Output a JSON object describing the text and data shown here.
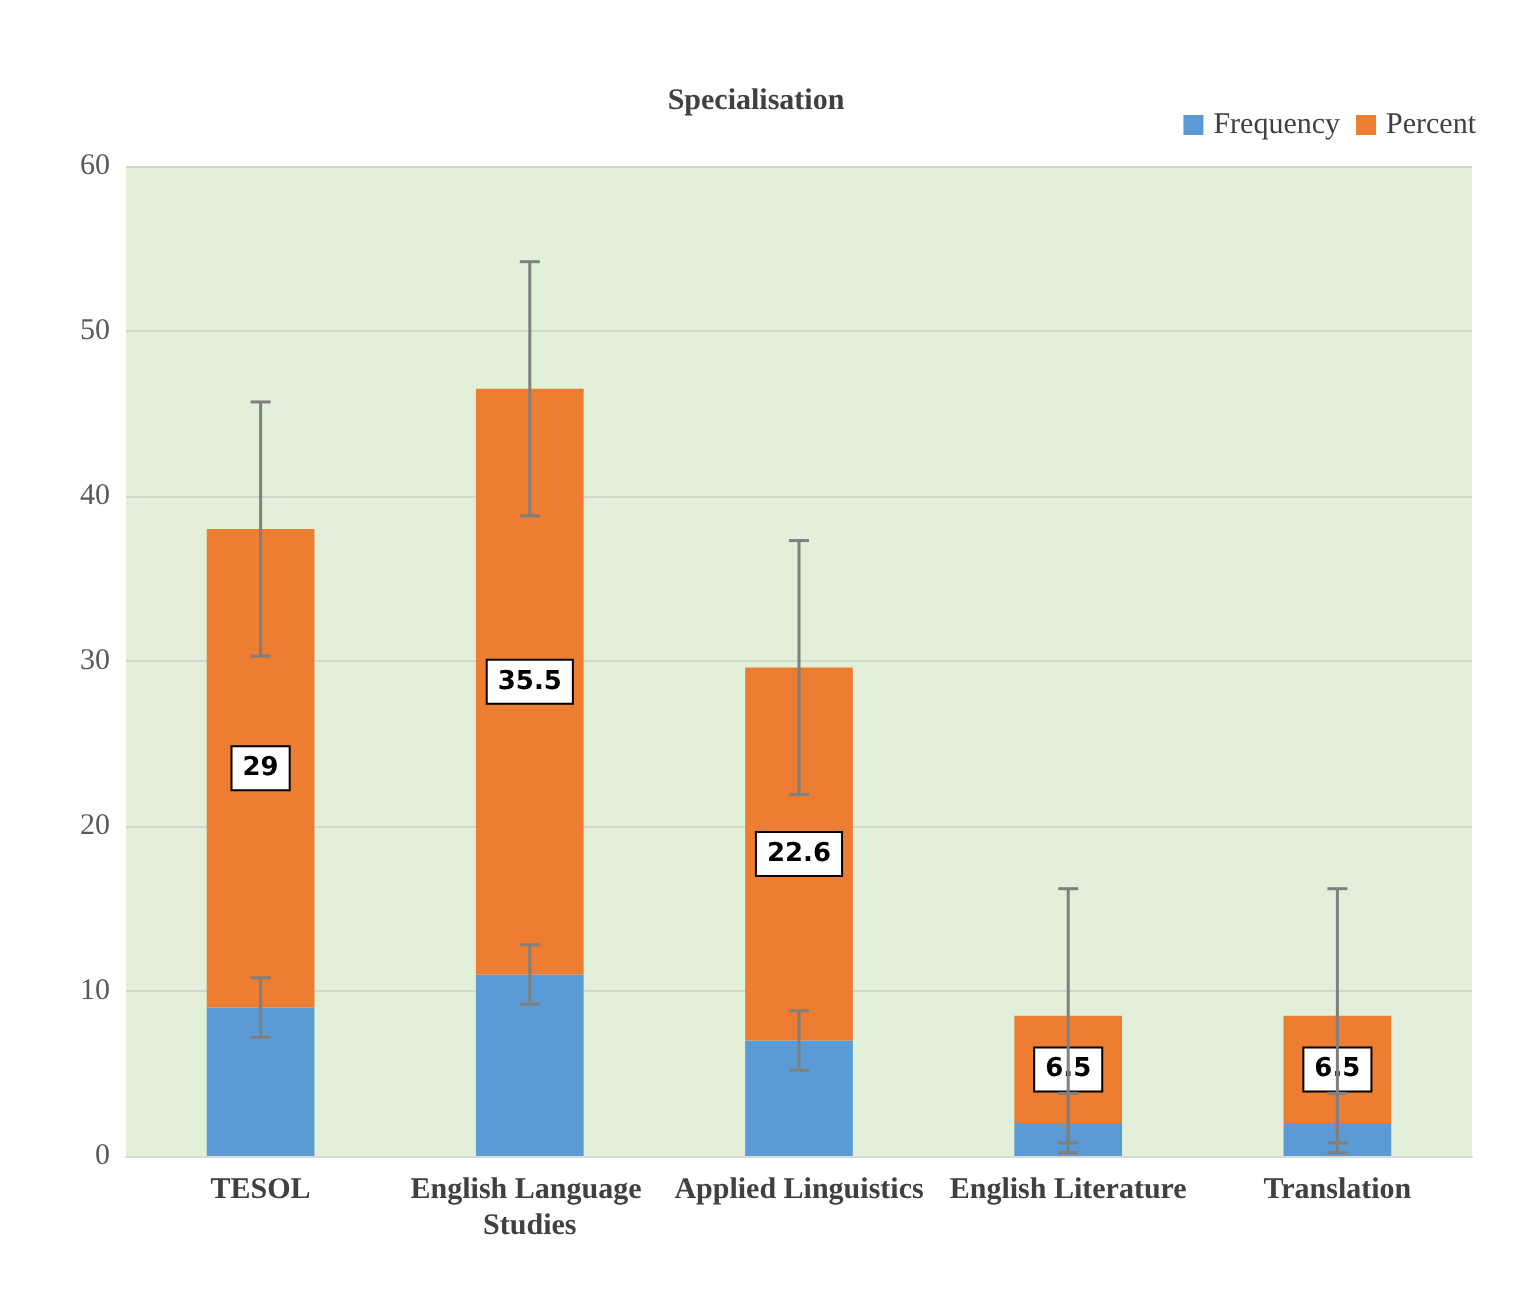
{
  "chart_data": {
    "type": "bar",
    "title": "Specialisation",
    "categories": [
      "TESOL",
      "English Language Studies",
      "Applied Linguistics",
      "English Literature",
      "Translation"
    ],
    "stacked": true,
    "legend": "top right",
    "grid": "y",
    "ylim": [
      0,
      60
    ],
    "yticks": [
      0,
      10,
      20,
      30,
      40,
      50,
      60
    ],
    "series": [
      {
        "name": "Frequency",
        "color": "#5b9bd5",
        "values": [
          9,
          11,
          7,
          2,
          2
        ],
        "errors": [
          1.8,
          1.8,
          1.8,
          1.8,
          1.8
        ]
      },
      {
        "name": "Percent",
        "color": "#ed7d31",
        "values": [
          29,
          35.5,
          22.6,
          6.5,
          6.5
        ],
        "errors": [
          7.7,
          7.7,
          7.7,
          7.7,
          7.7
        ],
        "value_labels": [
          "29",
          "35.5",
          "22.6",
          "6.5",
          "6.5"
        ]
      }
    ]
  }
}
